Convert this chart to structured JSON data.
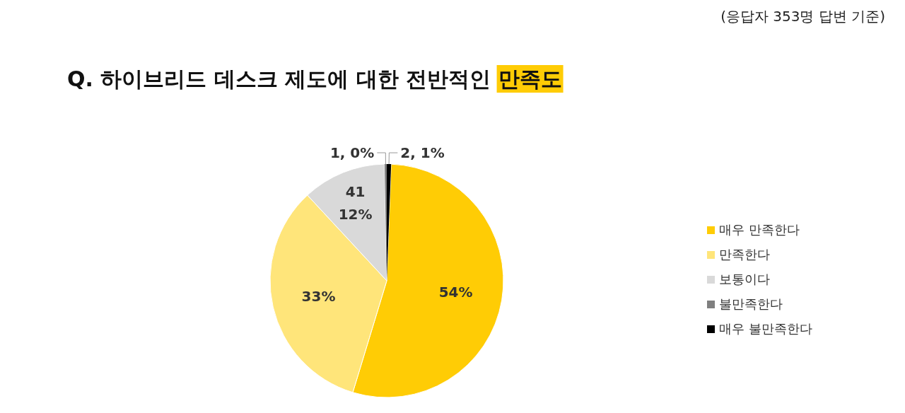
{
  "chart_data": {
    "type": "pie",
    "title": "Q. 하이브리드 데스크 제도에 대한 전반적인 만족도",
    "categories": [
      "매우 만족한다",
      "만족한다",
      "보통이다",
      "불만족한다",
      "매우 불만족한다"
    ],
    "values": [
      54.1,
      33.4,
      11.6,
      0.3,
      0.6
    ],
    "colors": [
      "#ffcc05",
      "#ffe57a",
      "#d9d9d9",
      "#7f7f7f",
      "#000000"
    ],
    "value_labels": [
      "54%",
      "33%",
      "41\n12%",
      "1, 0%",
      "2, 1%"
    ],
    "annotations": [
      "(응답자 353명 답변 기준)"
    ],
    "legend": "right"
  }
}
